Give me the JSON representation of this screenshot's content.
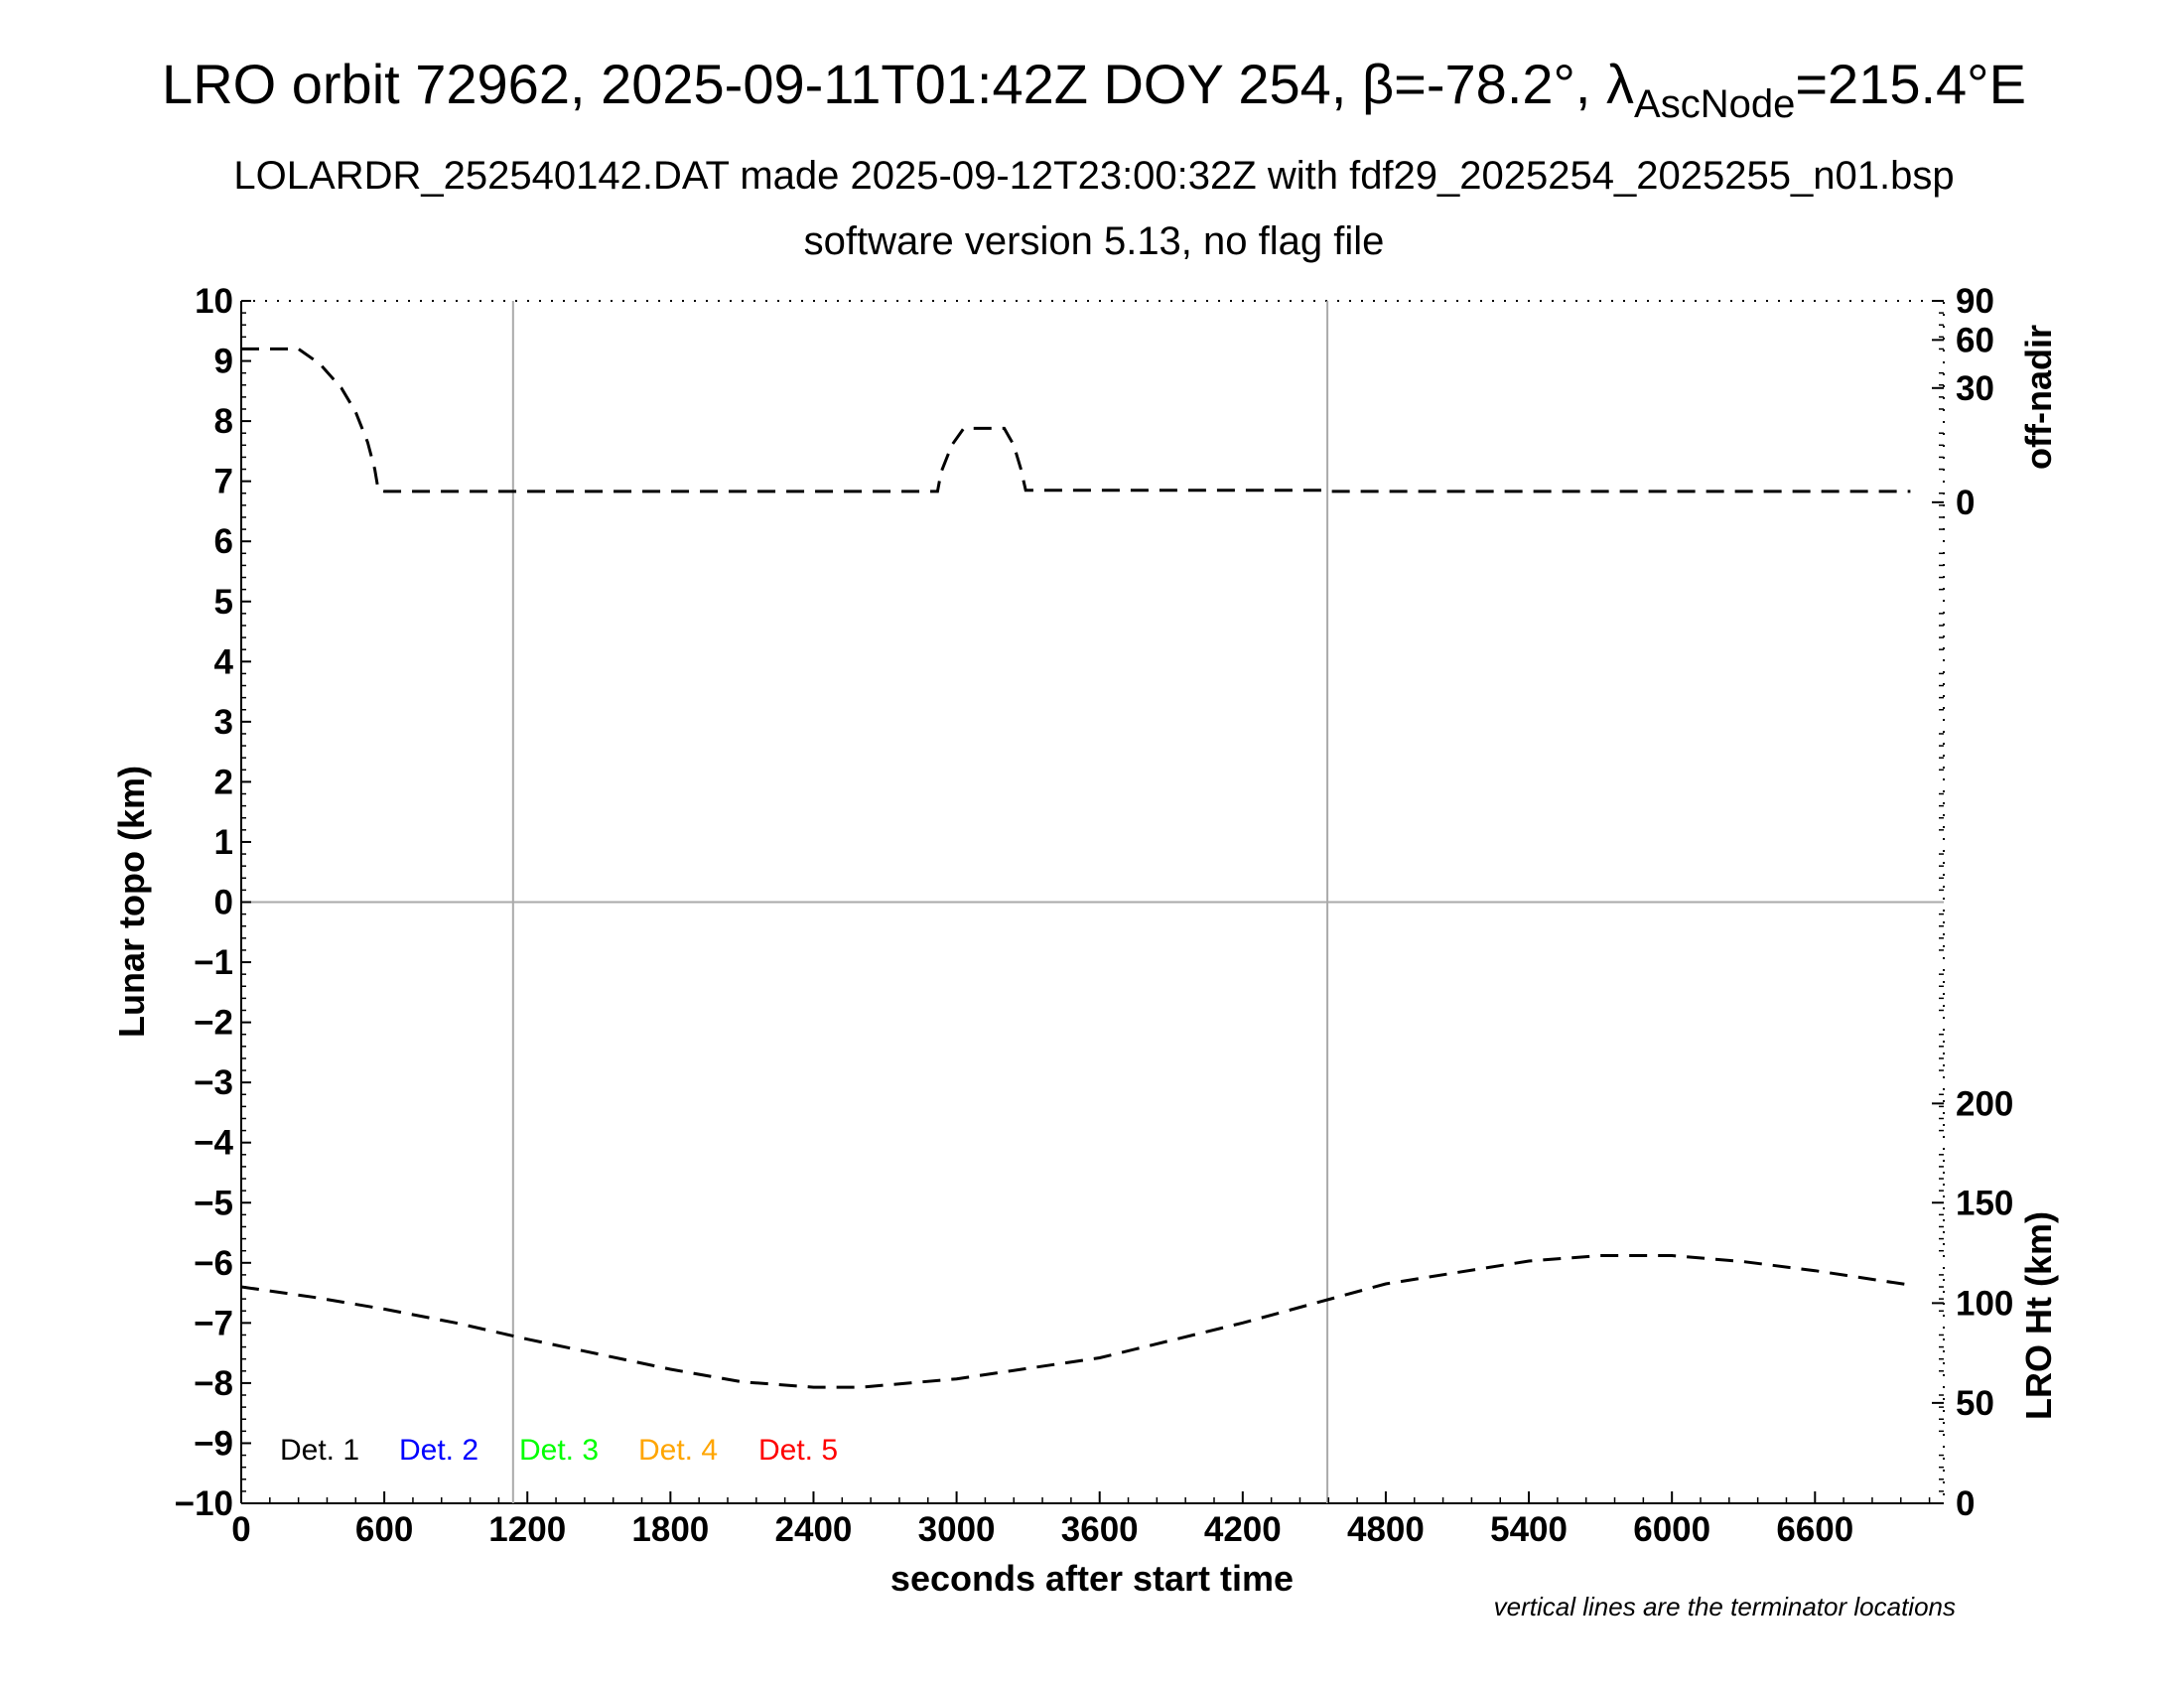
{
  "title": {
    "main": "LRO orbit 72962, 2025-09-11T01:42Z DOY 254, ",
    "beta_symbol": "β",
    "beta_value": "=-78.2°, ",
    "lambda_symbol": "λ",
    "lambda_subscript": "AscNode",
    "lambda_value": "=215.4°E"
  },
  "subtitle": "LOLARDR_252540142.DAT made 2025-09-12T23:00:32Z with fdf29_2025254_2025255_n01.bsp",
  "subtitle2": "software version 5.13, no flag file",
  "footnote": "vertical lines are the terminator locations",
  "chart_data": {
    "type": "line",
    "xlabel": "seconds after start time",
    "ylabel": "Lunar topo (km)",
    "y2label_top": "off-nadir",
    "y2label_bottom": "LRO Ht (km)",
    "xlim": [
      0,
      7140
    ],
    "ylim": [
      -10,
      10
    ],
    "x_ticks": [
      0,
      600,
      1200,
      1800,
      2400,
      3000,
      3600,
      4200,
      4800,
      5400,
      6000,
      6600
    ],
    "y_ticks": [
      10,
      9,
      8,
      7,
      6,
      5,
      4,
      3,
      2,
      1,
      0,
      -1,
      -2,
      -3,
      -4,
      -5,
      -6,
      -7,
      -8,
      -9,
      -10
    ],
    "off_nadir_ticks": [
      {
        "label": "90",
        "y": 10
      },
      {
        "label": "60",
        "y": 9.35
      },
      {
        "label": "30",
        "y": 8.55
      },
      {
        "label": "0",
        "y": 6.65
      }
    ],
    "lro_ht_ticks": [
      {
        "label": "200",
        "y": -3.35
      },
      {
        "label": "150",
        "y": -5.0
      },
      {
        "label": "100",
        "y": -6.67
      },
      {
        "label": "50",
        "y": -8.33
      },
      {
        "label": "0",
        "y": -10
      }
    ],
    "terminator_lines_x": [
      1140,
      4555
    ],
    "zero_line_y": 0,
    "grid": false,
    "legend": {
      "position": "bottom-left",
      "entries": [
        {
          "label": "Det. 1",
          "color": "#000000"
        },
        {
          "label": "Det. 2",
          "color": "#0000ff"
        },
        {
          "label": "Det. 3",
          "color": "#00ff00"
        },
        {
          "label": "Det. 4",
          "color": "#ffa500"
        },
        {
          "label": "Det. 5",
          "color": "#ff0000"
        }
      ]
    },
    "series": [
      {
        "color": "#000000",
        "style": "dashed",
        "points": [
          [
            0,
            9.2
          ],
          [
            240,
            9.2
          ],
          [
            330,
            8.95
          ],
          [
            420,
            8.55
          ],
          [
            480,
            8.15
          ],
          [
            530,
            7.65
          ],
          [
            560,
            7.2
          ],
          [
            575,
            6.85
          ],
          [
            600,
            6.83
          ],
          [
            1200,
            6.83
          ],
          [
            2400,
            6.83
          ],
          [
            2920,
            6.83
          ],
          [
            2935,
            7.15
          ],
          [
            2980,
            7.6
          ],
          [
            3030,
            7.88
          ],
          [
            3200,
            7.88
          ],
          [
            3240,
            7.6
          ],
          [
            3270,
            7.2
          ],
          [
            3290,
            6.85
          ],
          [
            3600,
            6.85
          ],
          [
            4550,
            6.85
          ],
          [
            4560,
            6.83
          ],
          [
            7000,
            6.83
          ]
        ]
      },
      {
        "color": "#000000",
        "style": "dashed",
        "points": [
          [
            0,
            -6.4
          ],
          [
            300,
            -6.57
          ],
          [
            600,
            -6.77
          ],
          [
            900,
            -7.0
          ],
          [
            1200,
            -7.27
          ],
          [
            1500,
            -7.52
          ],
          [
            1800,
            -7.77
          ],
          [
            2100,
            -7.98
          ],
          [
            2400,
            -8.07
          ],
          [
            2600,
            -8.07
          ],
          [
            3000,
            -7.93
          ],
          [
            3600,
            -7.58
          ],
          [
            4200,
            -7.0
          ],
          [
            4800,
            -6.35
          ],
          [
            5400,
            -5.97
          ],
          [
            5700,
            -5.88
          ],
          [
            6000,
            -5.88
          ],
          [
            6300,
            -5.98
          ],
          [
            6600,
            -6.13
          ],
          [
            7000,
            -6.37
          ]
        ]
      }
    ]
  }
}
